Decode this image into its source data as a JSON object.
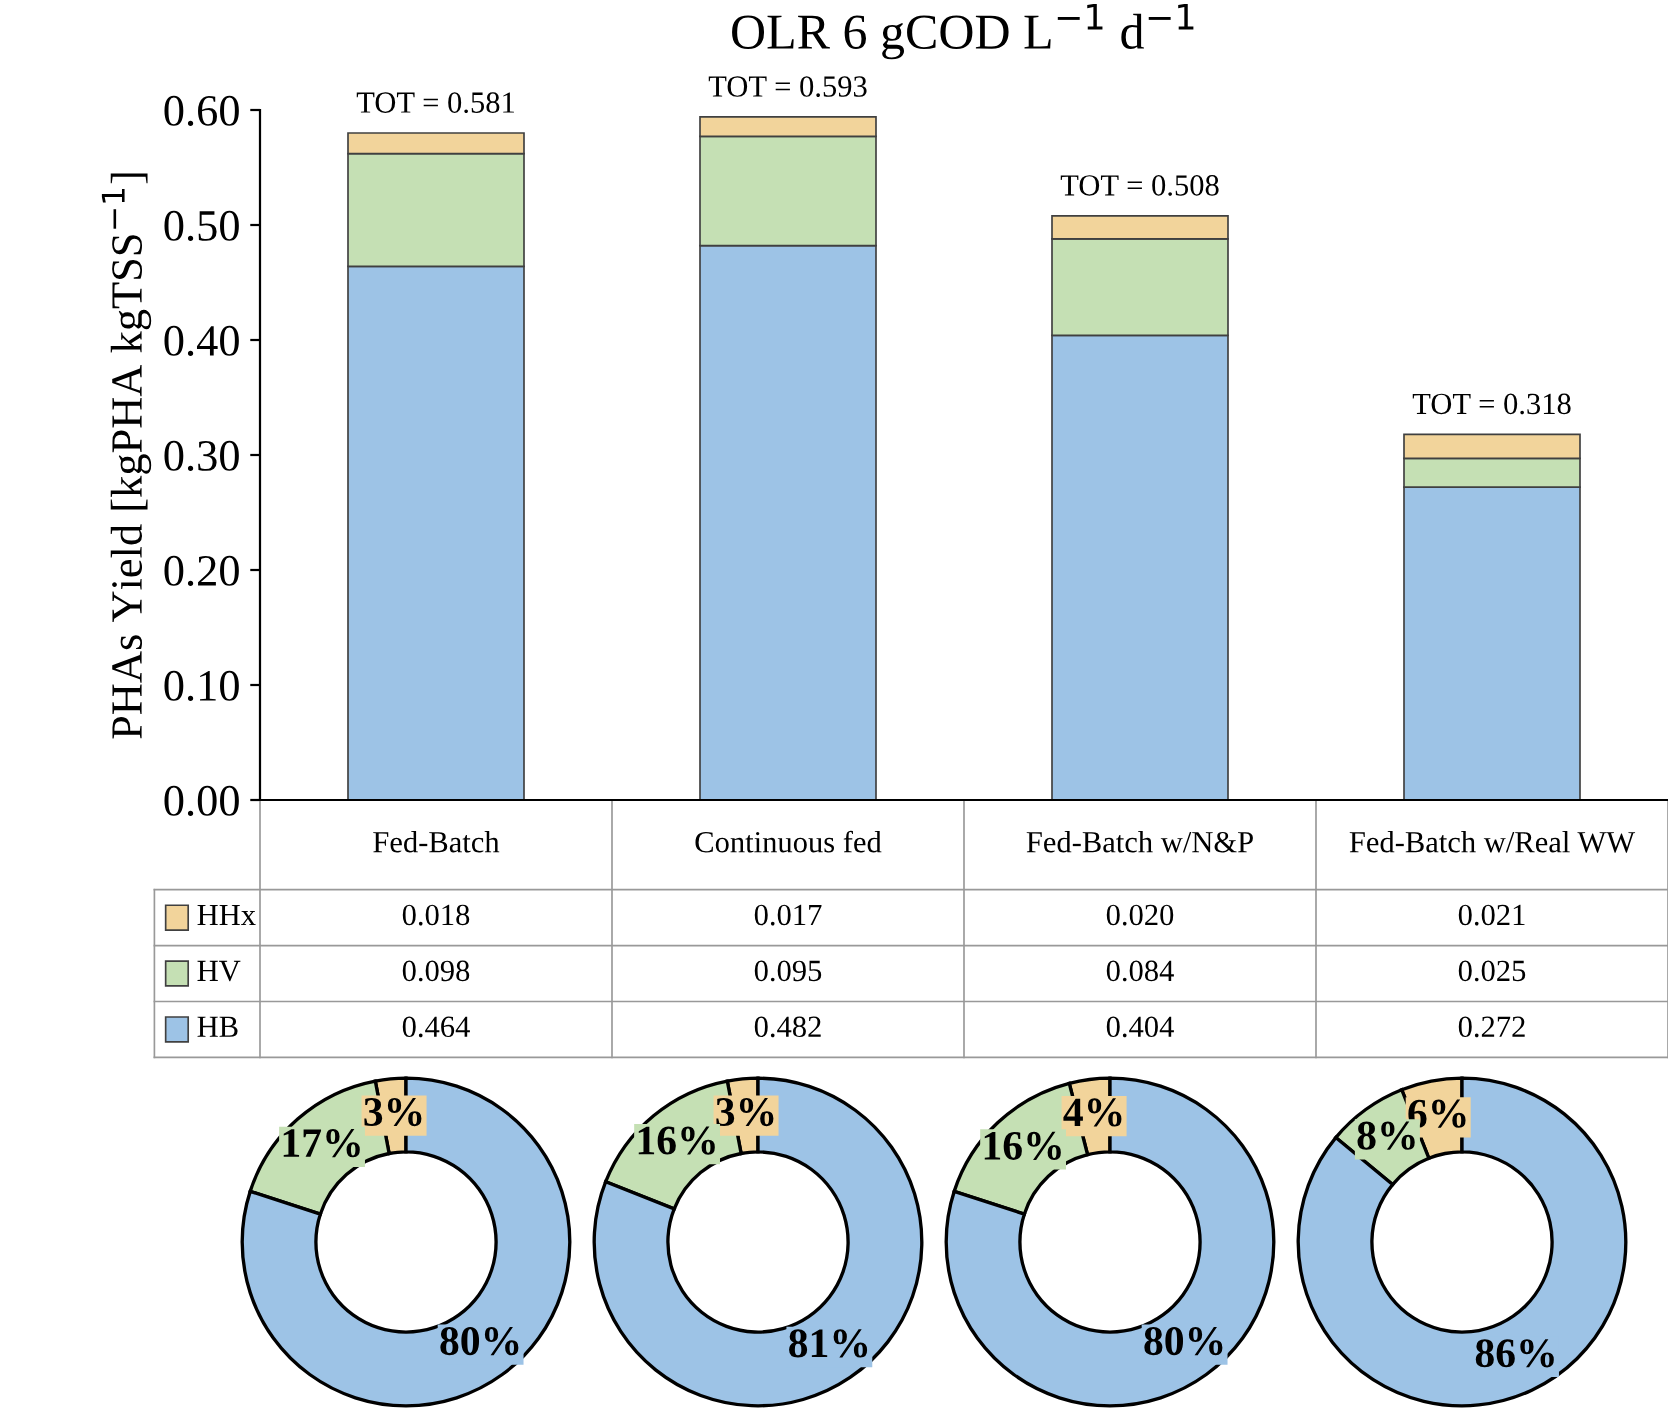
{
  "chart_data": [
    {
      "type": "bar",
      "title": "OLR 6 gCOD L$^{−1}$ d$^{−1}$",
      "ylabel": "PHAs Yield [kgPHA kgTSS$^{−1}$]",
      "stacked": true,
      "categories": [
        "Fed-Batch",
        "Continuous fed",
        "Fed-Batch w/N&P",
        "Fed-Batch w/Real WW"
      ],
      "series": [
        {
          "name": "HB",
          "color": "#9dc3e6",
          "values": [
            0.464,
            0.482,
            0.404,
            0.272
          ],
          "value_labels": [
            "0.464",
            "0.482",
            "0.404",
            "0.272"
          ]
        },
        {
          "name": "HV",
          "color": "#c5e0b4",
          "values": [
            0.098,
            0.095,
            0.084,
            0.025
          ],
          "value_labels": [
            "0.098",
            "0.095",
            "0.084",
            "0.025"
          ]
        },
        {
          "name": "HHx",
          "color": "#f2d49b",
          "values": [
            0.018,
            0.017,
            0.02,
            0.021
          ],
          "value_labels": [
            "0.018",
            "0.017",
            "0.020",
            "0.021"
          ]
        }
      ],
      "totals": [
        "TOT = 0.581",
        "TOT = 0.593",
        "TOT = 0.508",
        "TOT = 0.318"
      ],
      "ylim": [
        0,
        0.6
      ],
      "yticks": [
        {
          "value": 0,
          "label": "0.00"
        },
        {
          "value": 0.1,
          "label": "0.10"
        },
        {
          "value": 0.2,
          "label": "0.20"
        },
        {
          "value": 0.3,
          "label": "0.30"
        },
        {
          "value": 0.4,
          "label": "0.40"
        },
        {
          "value": 0.5,
          "label": "0.50"
        },
        {
          "value": 0.6,
          "label": "0.60"
        }
      ],
      "grid": false,
      "legend": "left"
    },
    {
      "type": "donut",
      "categories": [
        null,
        null,
        null
      ],
      "values": [
        3,
        17,
        80
      ],
      "colors": [
        "#f2d49b",
        "#c5e0b4",
        "#9dc3e6"
      ],
      "value_labels": [
        "3%",
        "17%",
        "80%"
      ]
    },
    {
      "type": "donut",
      "categories": [
        null,
        null,
        null
      ],
      "values": [
        3,
        16,
        81
      ],
      "colors": [
        "#f2d49b",
        "#c5e0b4",
        "#9dc3e6"
      ],
      "value_labels": [
        "3%",
        "16%",
        "81%"
      ]
    },
    {
      "type": "donut",
      "categories": [
        null,
        null,
        null
      ],
      "values": [
        4,
        16,
        80
      ],
      "colors": [
        "#f2d49b",
        "#c5e0b4",
        "#9dc3e6"
      ],
      "value_labels": [
        "4%",
        "16%",
        "80%"
      ]
    },
    {
      "type": "donut",
      "categories": [
        null,
        null,
        null
      ],
      "values": [
        6,
        8,
        86
      ],
      "colors": [
        "#f2d49b",
        "#c5e0b4",
        "#9dc3e6"
      ],
      "value_labels": [
        "6%",
        "8%",
        "86%"
      ]
    }
  ]
}
